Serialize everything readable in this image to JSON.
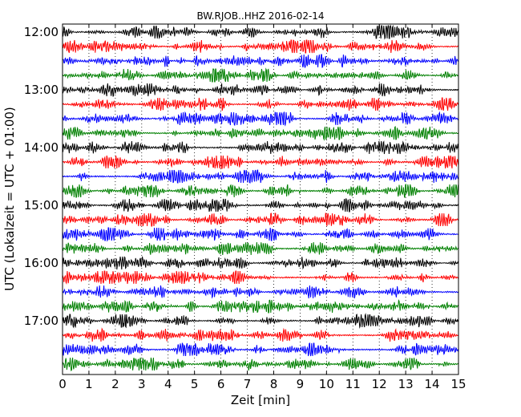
{
  "chart_data": {
    "type": "line",
    "title": "BW.RJOB..HHZ 2016-02-14",
    "xlabel": "Zeit  [min]",
    "ylabel": "UTC (Lokalzeit = UTC + 01:00)",
    "xlim": [
      0,
      15
    ],
    "x_ticks": [
      "0",
      "1",
      "2",
      "3",
      "4",
      "5",
      "6",
      "7",
      "8",
      "9",
      "10",
      "11",
      "12",
      "13",
      "14",
      "15"
    ],
    "y_tick_labels": [
      "12:00",
      "13:00",
      "14:00",
      "15:00",
      "16:00",
      "17:00"
    ],
    "grid": "vertical dotted at each minute",
    "line_colors": [
      "#000000",
      "#ff0000",
      "#0000ff",
      "#008000"
    ],
    "traces": [
      {
        "start": "12:00"
      },
      {
        "start": "12:15"
      },
      {
        "start": "12:30"
      },
      {
        "start": "12:45"
      },
      {
        "start": "13:00"
      },
      {
        "start": "13:15"
      },
      {
        "start": "13:30"
      },
      {
        "start": "13:45"
      },
      {
        "start": "14:00"
      },
      {
        "start": "14:15"
      },
      {
        "start": "14:30"
      },
      {
        "start": "14:45"
      },
      {
        "start": "15:00"
      },
      {
        "start": "15:15"
      },
      {
        "start": "15:30"
      },
      {
        "start": "15:45"
      },
      {
        "start": "16:00"
      },
      {
        "start": "16:15"
      },
      {
        "start": "16:30"
      },
      {
        "start": "16:45"
      },
      {
        "start": "17:00"
      },
      {
        "start": "17:15"
      },
      {
        "start": "17:30"
      },
      {
        "start": "17:45"
      }
    ]
  }
}
